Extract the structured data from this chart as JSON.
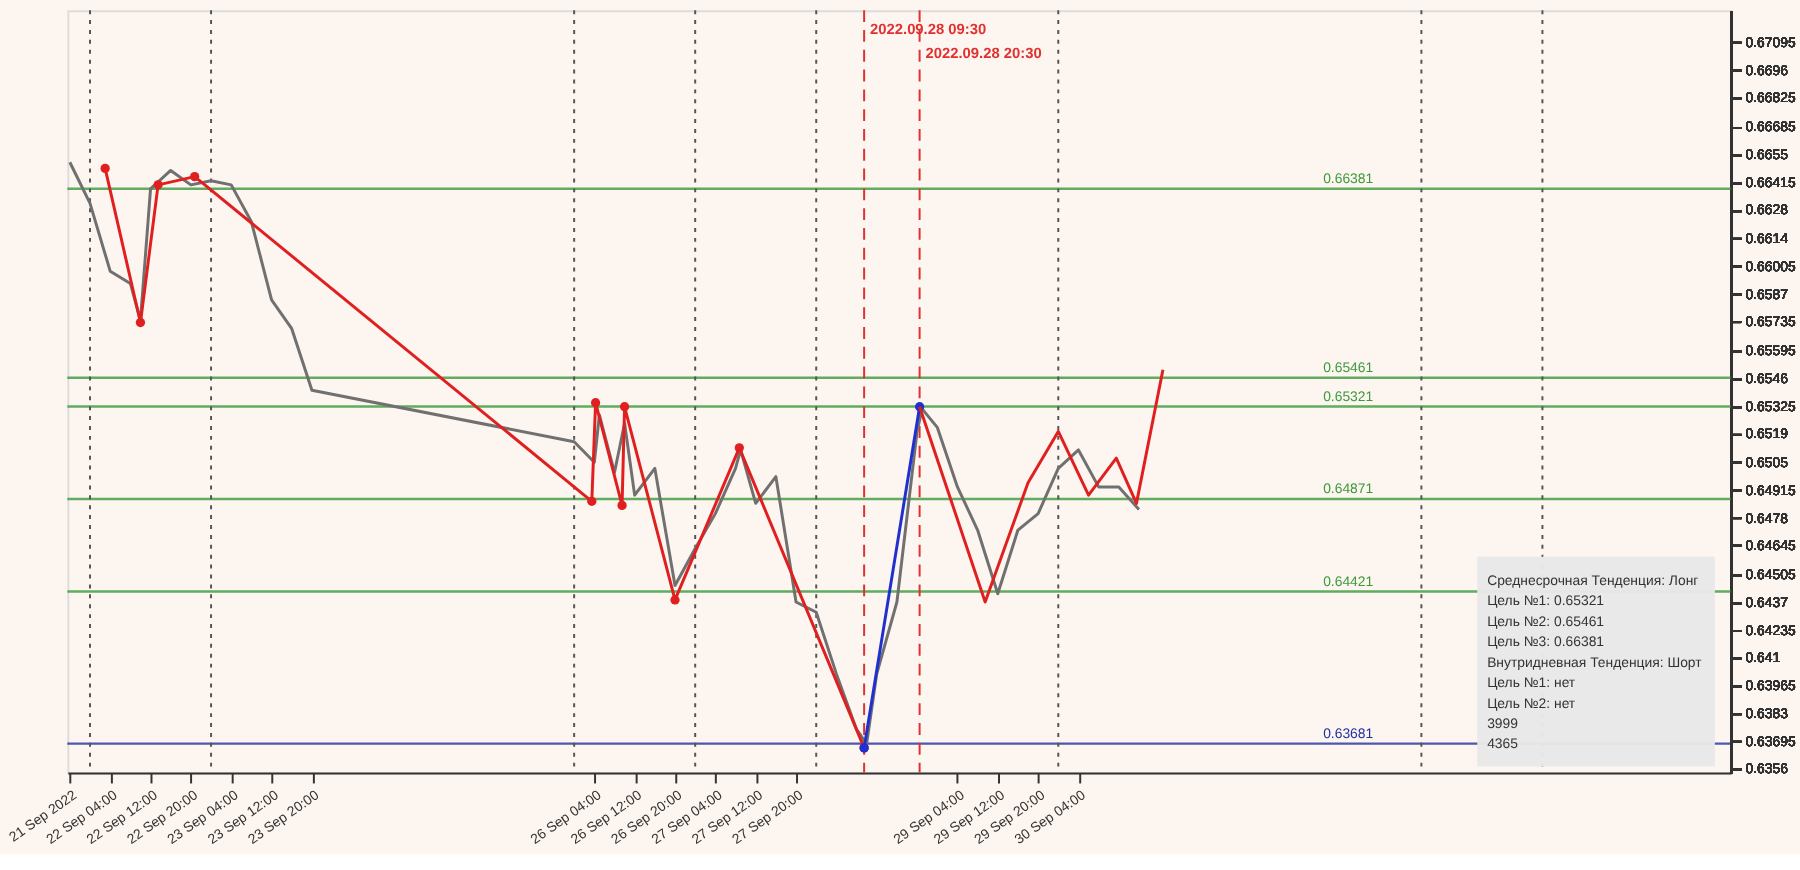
{
  "chart_data": {
    "type": "line",
    "xlim": [
      "2022-09-21T19:30",
      "2022-10-05T13:20"
    ],
    "xticks": [
      {
        "value": "2022-09-21T20:00",
        "label": "21 Sep 2022"
      },
      {
        "value": "2022-09-22T04:00",
        "label": "22 Sep 04:00"
      },
      {
        "value": "2022-09-22T12:00",
        "label": "22 Sep 12:00"
      },
      {
        "value": "2022-09-22T20:00",
        "label": "22 Sep 20:00"
      },
      {
        "value": "2022-09-23T04:00",
        "label": "23 Sep 04:00"
      },
      {
        "value": "2022-09-23T12:00",
        "label": "23 Sep 12:00"
      },
      {
        "value": "2022-09-23T20:00",
        "label": "23 Sep 20:00"
      },
      {
        "value": "2022-09-26T04:00",
        "label": "26 Sep 04:00"
      },
      {
        "value": "2022-09-26T12:00",
        "label": "26 Sep 12:00"
      },
      {
        "value": "2022-09-26T20:00",
        "label": "26 Sep 20:00"
      },
      {
        "value": "2022-09-27T04:00",
        "label": "27 Sep 04:00"
      },
      {
        "value": "2022-09-27T12:00",
        "label": "27 Sep 12:00"
      },
      {
        "value": "2022-09-27T20:00",
        "label": "27 Sep 20:00"
      },
      {
        "value": "2022-09-29T04:00",
        "label": "29 Sep 04:00"
      },
      {
        "value": "2022-09-29T12:00",
        "label": "29 Sep 12:00"
      },
      {
        "value": "2022-09-29T20:00",
        "label": "29 Sep 20:00"
      },
      {
        "value": "2022-09-30T04:00",
        "label": "30 Sep 04:00"
      }
    ],
    "ylim": [
      0.6354,
      0.6725
    ],
    "yticks": [
      0.67095,
      0.6696,
      0.66825,
      0.66685,
      0.6655,
      0.66415,
      0.6628,
      0.6614,
      0.66005,
      0.6587,
      0.65735,
      0.65595,
      0.6546,
      0.65325,
      0.6519,
      0.6505,
      0.64915,
      0.6478,
      0.64645,
      0.64505,
      0.6437,
      0.64235,
      0.641,
      0.63965,
      0.6383,
      0.63695,
      0.6356
    ],
    "series": [
      {
        "color": "#707070",
        "marker": "none",
        "x": [
          "2022-09-21T20:00",
          "2022-09-22T00:00",
          "2022-09-22T04:00",
          "2022-09-22T08:00",
          "2022-09-22T10:00",
          "2022-09-22T12:00",
          "2022-09-22T16:00",
          "2022-09-22T20:00",
          "2022-09-23T00:00",
          "2022-09-23T04:00",
          "2022-09-23T08:00",
          "2022-09-23T12:00",
          "2022-09-23T16:00",
          "2022-09-23T20:00",
          "2022-09-26T00:00",
          "2022-09-26T04:00",
          "2022-09-26T05:00",
          "2022-09-26T08:00",
          "2022-09-26T10:00",
          "2022-09-26T12:00",
          "2022-09-26T16:00",
          "2022-09-26T20:00",
          "2022-09-27T00:00",
          "2022-09-27T04:00",
          "2022-09-27T08:00",
          "2022-09-27T09:00",
          "2022-09-27T12:00",
          "2022-09-27T16:00",
          "2022-09-27T20:00",
          "2022-09-28T00:00",
          "2022-09-28T04:00",
          "2022-09-28T08:00",
          "2022-09-28T10:00",
          "2022-09-28T12:00",
          "2022-09-28T16:00",
          "2022-09-28T20:00",
          "2022-09-28T21:00",
          "2022-09-29T00:00",
          "2022-09-29T04:00",
          "2022-09-29T08:00",
          "2022-09-29T12:00",
          "2022-09-29T16:00",
          "2022-09-29T20:00",
          "2022-09-30T00:00",
          "2022-09-30T04:00",
          "2022-09-30T08:00",
          "2022-09-30T12:00",
          "2022-09-30T16:00"
        ],
        "values": [
          0.6651,
          0.6631,
          0.6598,
          0.6592,
          0.6574,
          0.6638,
          0.6647,
          0.664,
          0.6642,
          0.664,
          0.6622,
          0.6584,
          0.657,
          0.654,
          0.6515,
          0.6505,
          0.6528,
          0.65,
          0.6524,
          0.6489,
          0.6502,
          0.6445,
          0.6463,
          0.648,
          0.6502,
          0.6511,
          0.6485,
          0.6498,
          0.6437,
          0.6432,
          0.6402,
          0.6375,
          0.6368,
          0.6402,
          0.6437,
          0.652,
          0.6531,
          0.6522,
          0.6493,
          0.6472,
          0.6441,
          0.6472,
          0.648,
          0.6502,
          0.6511,
          0.6493,
          0.6493,
          0.6482
        ]
      },
      {
        "color": "#e02020",
        "marker": "circle",
        "x": [
          "2022-09-22T03:00",
          "2022-09-22T10:00",
          "2022-09-22T13:30",
          "2022-09-22T20:45",
          "2022-09-26T03:30",
          "2022-09-26T04:15",
          "2022-09-26T09:30",
          "2022-09-26T10:00",
          "2022-09-26T20:00",
          "2022-09-27T08:45",
          "2022-09-28T09:30"
        ],
        "values": [
          0.6648,
          0.6573,
          0.664,
          0.6644,
          0.6486,
          0.6534,
          0.6484,
          0.6532,
          0.6438,
          0.6512,
          0.6366
        ]
      },
      {
        "color": "#2030d0",
        "marker": "circle",
        "x": [
          "2022-09-28T09:30",
          "2022-09-28T20:30"
        ],
        "values": [
          0.6366,
          0.6532
        ]
      },
      {
        "color": "#e02020",
        "marker": "none",
        "x": [
          "2022-09-28T20:30",
          "2022-09-29T09:30",
          "2022-09-29T18:00",
          "2022-09-30T00:00",
          "2022-09-30T06:00",
          "2022-09-30T11:30",
          "2022-09-30T15:30",
          "2022-09-30T20:45"
        ],
        "values": [
          0.6532,
          0.6437,
          0.6495,
          0.652,
          0.6489,
          0.6507,
          0.6485,
          0.655
        ]
      }
    ],
    "ref_lines": [
      {
        "axis": "y",
        "value": 0.66381,
        "label": "0.66381",
        "color": "#3a9a3a"
      },
      {
        "axis": "y",
        "value": 0.65461,
        "label": "0.65461",
        "color": "#3a9a3a"
      },
      {
        "axis": "y",
        "value": 0.65321,
        "label": "0.65321",
        "color": "#3a9a3a"
      },
      {
        "axis": "y",
        "value": 0.64871,
        "label": "0.64871",
        "color": "#3a9a3a"
      },
      {
        "axis": "y",
        "value": 0.64421,
        "label": "0.64421",
        "color": "#3a9a3a"
      },
      {
        "axis": "y",
        "value": 0.63681,
        "label": "0.63681",
        "color": "#2030a0"
      },
      {
        "axis": "x",
        "value": "2022-09-28T09:30",
        "label": "2022.09.28 09:30",
        "color": "#e03030",
        "line_style": "dashed"
      },
      {
        "axis": "x",
        "value": "2022-09-28T20:30",
        "label": "2022.09.28 20:30",
        "color": "#e03030",
        "line_style": "dashed"
      },
      {
        "axis": "x",
        "value": "2022-09-22T00:00",
        "color": "#555555",
        "line_style": "dotted"
      },
      {
        "axis": "x",
        "value": "2022-09-23T00:00",
        "color": "#555555",
        "line_style": "dotted"
      },
      {
        "axis": "x",
        "value": "2022-09-26T00:00",
        "color": "#555555",
        "line_style": "dotted"
      },
      {
        "axis": "x",
        "value": "2022-09-27T00:00",
        "color": "#555555",
        "line_style": "dotted"
      },
      {
        "axis": "x",
        "value": "2022-09-28T00:00",
        "color": "#555555",
        "line_style": "dotted"
      },
      {
        "axis": "x",
        "value": "2022-09-30T00:00",
        "color": "#555555",
        "line_style": "dotted"
      },
      {
        "axis": "x",
        "value": "2022-10-03T00:00",
        "color": "#555555",
        "line_style": "dotted"
      },
      {
        "axis": "x",
        "value": "2022-10-04T00:00",
        "color": "#555555",
        "line_style": "dotted"
      }
    ],
    "annotations": [
      "Среднесрочная Тенденция: Лонг",
      "Цель №1: 0.65321",
      "Цель №2: 0.65461",
      "Цель №3: 0.66381",
      "Внутридневная Тенденция: Шорт",
      "Цель №1: нет",
      "Цель №2: нет",
      "3999",
      "4365"
    ],
    "grid": false
  }
}
